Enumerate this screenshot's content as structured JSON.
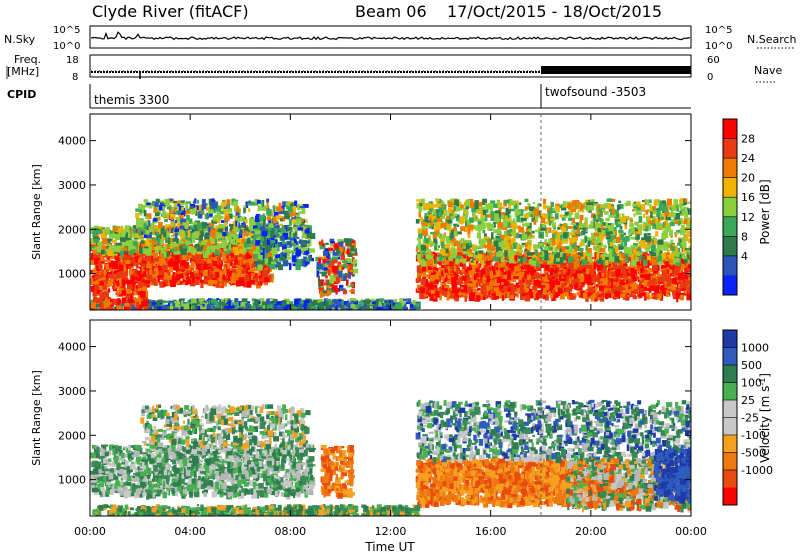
{
  "header": {
    "station": "Clyde River (fitACF)",
    "beam": "Beam 06",
    "dates": "17/Oct/2015 - 18/Oct/2015"
  },
  "panels": {
    "nsky_label": "N.Sky",
    "nsearch_label": "N.Search",
    "freq_label_1": "Freq.",
    "freq_label_2": "[MHz]",
    "nave_label": "Nave",
    "cpid_label": "CPID",
    "nsky_ticks": [
      "10^5",
      "10^0"
    ],
    "nsearch_ticks": [
      "10^5",
      "10^0"
    ],
    "freq_ticks": [
      "18",
      "8"
    ],
    "nave_ticks": [
      "60",
      "0"
    ],
    "cpid_1": "themis 3300",
    "cpid_2": "twofsound -3503"
  },
  "chart_data": [
    {
      "type": "heatmap",
      "name": "power",
      "xlabel": "Time UT",
      "ylabel": "Slant Range [km]",
      "x_ticks": [
        "00:00",
        "04:00",
        "08:00",
        "12:00",
        "16:00",
        "20:00",
        "00:00"
      ],
      "xlim_hours": [
        0,
        24
      ],
      "y_ticks": [
        1000,
        2000,
        3000,
        4000
      ],
      "ylim_km": [
        180,
        4600
      ],
      "colorbar_label": "Power [dB]",
      "colorbar_ticks": [
        "4",
        "8",
        "12",
        "16",
        "20",
        "24",
        "28"
      ],
      "colorbar_colors": [
        "#0a22f5",
        "#2d55b8",
        "#2f7a4a",
        "#3aa85a",
        "#8ccf3e",
        "#f2b200",
        "#f07a00",
        "#e83a12",
        "#ff0000"
      ]
    },
    {
      "type": "heatmap",
      "name": "velocity",
      "xlabel": "Time UT",
      "ylabel": "Slant Range [km]",
      "x_ticks": [
        "00:00",
        "04:00",
        "08:00",
        "12:00",
        "16:00",
        "20:00",
        "00:00"
      ],
      "xlim_hours": [
        0,
        24
      ],
      "y_ticks": [
        1000,
        2000,
        3000,
        4000
      ],
      "ylim_km": [
        180,
        4600
      ],
      "colorbar_label": "Velocity [m s^-1]",
      "colorbar_ticks": [
        "1000",
        "500",
        "100",
        "25",
        "-25",
        "-100",
        "-500",
        "-1000"
      ],
      "colorbar_colors": [
        "#1e3aa8",
        "#2f5bbf",
        "#2e7d4f",
        "#48b050",
        "#c8c8c8",
        "#c8c8c8",
        "#f5a020",
        "#f07810",
        "#e84a10",
        "#ff0000"
      ]
    }
  ]
}
